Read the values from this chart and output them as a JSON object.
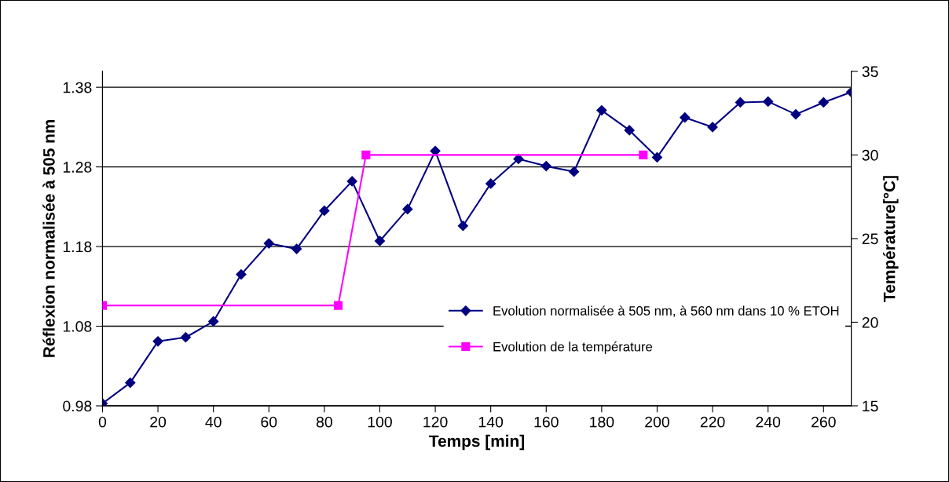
{
  "chart_data": {
    "type": "line",
    "xlabel": "Temps [min]",
    "ylabel": "Réflexion normalisée à 505 nm",
    "y2label": "Température[°C]",
    "series": [
      {
        "name": "Evolution normalisée à 505 nm, à 560 nm dans 10 % ETOH",
        "color": "#000080",
        "marker": "diamond",
        "x": [
          0,
          10,
          20,
          30,
          40,
          50,
          60,
          70,
          80,
          90,
          100,
          110,
          120,
          130,
          140,
          150,
          160,
          170,
          180,
          190,
          200,
          210,
          220,
          230,
          240,
          250,
          260,
          270
        ],
        "values": [
          0.983,
          1.009,
          1.061,
          1.066,
          1.086,
          1.145,
          1.184,
          1.177,
          1.225,
          1.262,
          1.187,
          1.227,
          1.3,
          1.206,
          1.259,
          1.29,
          1.281,
          1.274,
          1.351,
          1.326,
          1.292,
          1.342,
          1.33,
          1.361,
          1.362,
          1.346,
          1.361,
          1.374
        ]
      },
      {
        "name": "Evolution de la température",
        "color": "#ff00ff",
        "marker": "square",
        "axis": "y2",
        "x": [
          0,
          85,
          95,
          195
        ],
        "values": [
          21,
          21,
          30,
          30
        ]
      }
    ],
    "xlim": [
      0,
      270
    ],
    "xticks": [
      0,
      20,
      40,
      60,
      80,
      100,
      120,
      140,
      160,
      180,
      200,
      220,
      240,
      260
    ],
    "ylim": [
      0.98,
      1.4
    ],
    "yticks": [
      0.98,
      1.08,
      1.18,
      1.28,
      1.38
    ],
    "y2lim": [
      15,
      35
    ],
    "y2ticks": [
      15,
      20,
      25,
      30,
      35
    ],
    "grid": "y",
    "legend": "lower right",
    "line_style": "solid"
  }
}
